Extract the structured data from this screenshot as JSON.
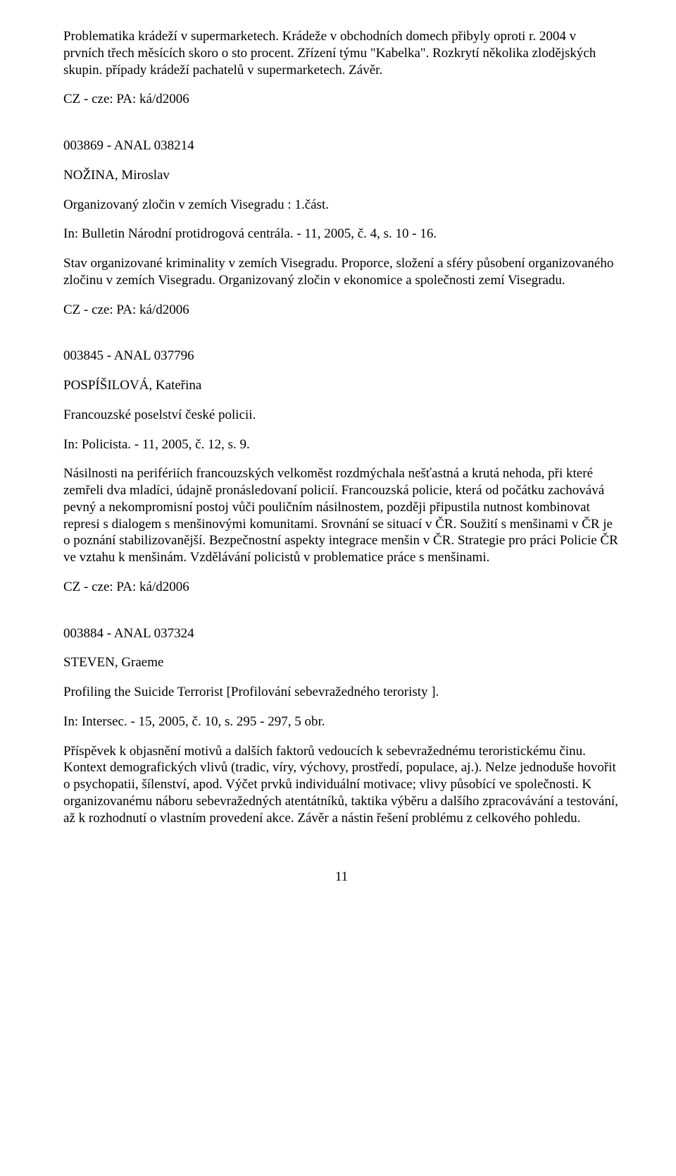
{
  "entry1": {
    "body": "Problematika krádeží v supermarketech. Krádeže v obchodních domech přibyly oproti r. 2004 v prvních třech měsících skoro o sto procent. Zřízení týmu \"Kabelka\". Rozkrytí několika zlodějských skupin. případy krádeží pachatelů v supermarketech. Závěr.",
    "code": "CZ - cze: PA: ká/d2006"
  },
  "entry2": {
    "id": "003869 - ANAL 038214",
    "author": "NOŽINA, Miroslav",
    "title": "Organizovaný zločin v zemích Visegradu : 1.část.",
    "source": "In: Bulletin Národní protidrogová centrála. - 11, 2005, č. 4, s. 10 - 16.",
    "body": "Stav organizované kriminality v zemích Visegradu. Proporce, složení a sféry působení organizovaného zločinu v zemích Visegradu. Organizovaný zločin v ekonomice a společnosti zemí Visegradu.",
    "code": "CZ - cze: PA: ká/d2006"
  },
  "entry3": {
    "id": "003845 - ANAL 037796",
    "author": "POSPÍŠILOVÁ, Kateřina",
    "title": "Francouzské poselství české policii.",
    "source": "In: Policista. - 11, 2005, č. 12, s. 9.",
    "body": "Násilnosti na perifériích francouzských velkoměst rozdmýchala nešťastná a krutá nehoda, při které zemřeli dva mladíci, údajně pronásledovaní policií. Francouzská policie, která od počátku zachovává pevný a nekompromisní postoj vůči pouličním násilnostem, později připustila nutnost kombinovat represi s dialogem s menšinovými komunitami. Srovnání se situací v ČR. Soužití s menšinami v ČR je o poznání stabilizovanější. Bezpečnostní aspekty integrace menšin v ČR. Strategie pro práci Policie ČR ve vztahu k menšinám. Vzdělávání policistů v problematice práce s menšinami.",
    "code": "CZ - cze: PA: ká/d2006"
  },
  "entry4": {
    "id": "003884 - ANAL 037324",
    "author": "STEVEN, Graeme",
    "title": "Profiling the Suicide Terrorist [Profilování sebevražedného teroristy ].",
    "source": "In: Intersec. - 15, 2005, č. 10, s. 295 - 297, 5 obr.",
    "body": "Příspěvek k objasnění motivů a dalších faktorů vedoucích k sebevražednému teroristickému činu. Kontext demografických vlivů (tradic, víry, výchovy, prostředí, populace, aj.). Nelze jednoduše hovořit o psychopatii, šílenství, apod. Výčet prvků individuální motivace; vlivy působící ve společnosti. K organizovanému náboru sebevražedných atentátníků, taktika výběru a dalšího zpracovávání a testování, až k rozhodnutí o vlastním provedení akce. Závěr a nástin řešení problému z celkového pohledu."
  },
  "pageNumber": "11"
}
